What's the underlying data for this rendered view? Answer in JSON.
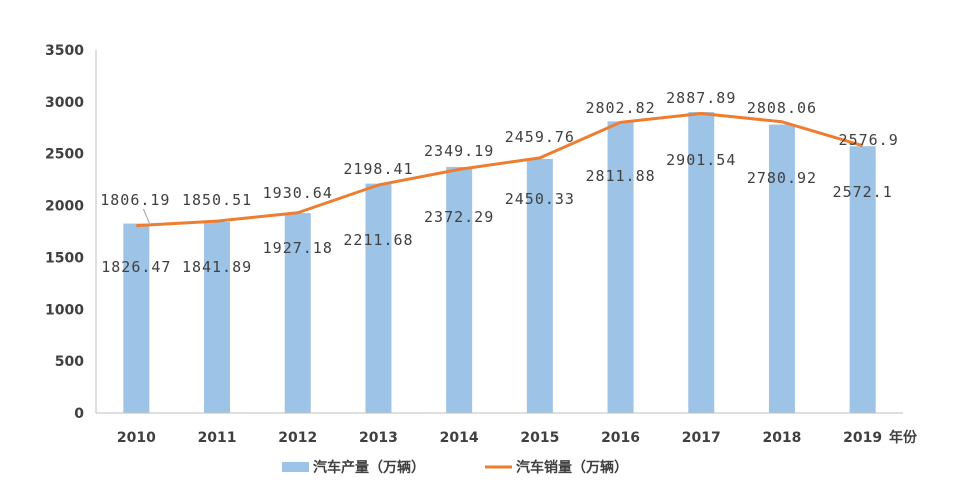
{
  "chart_data": {
    "type": "bar",
    "categories": [
      "2010",
      "2011",
      "2012",
      "2013",
      "2014",
      "2015",
      "2016",
      "2017",
      "2018",
      "2019"
    ],
    "series": [
      {
        "name": "汽车产量（万辆）",
        "type": "bar",
        "color": "#9dc3e6",
        "values": [
          1826.47,
          1841.89,
          1927.18,
          2211.68,
          2372.29,
          2450.33,
          2811.88,
          2901.54,
          2780.92,
          2572.1
        ],
        "labels": [
          "1826.47",
          "1841.89",
          "1927.18",
          "2211.68",
          "2372.29",
          "2450.33",
          "2811.88",
          "2901.54",
          "2780.92",
          "2572.1"
        ]
      },
      {
        "name": "汽车销量（万辆）",
        "type": "line",
        "color": "#ed7d31",
        "values": [
          1806.19,
          1850.51,
          1930.64,
          2198.41,
          2349.19,
          2459.76,
          2802.82,
          2887.89,
          2808.06,
          2576.9
        ],
        "labels": [
          "1806.19",
          "1850.51",
          "1930.64",
          "2198.41",
          "2349.19",
          "2459.76",
          "2802.82",
          "2887.89",
          "2808.06",
          "2576.9"
        ]
      }
    ],
    "xlabel": "年份",
    "ylabel": "",
    "ylim": [
      0,
      3500
    ],
    "yticks": [
      "0",
      "500",
      "1000",
      "1500",
      "2000",
      "2500",
      "3000",
      "3500"
    ],
    "grid": false,
    "legend": "bottom"
  }
}
